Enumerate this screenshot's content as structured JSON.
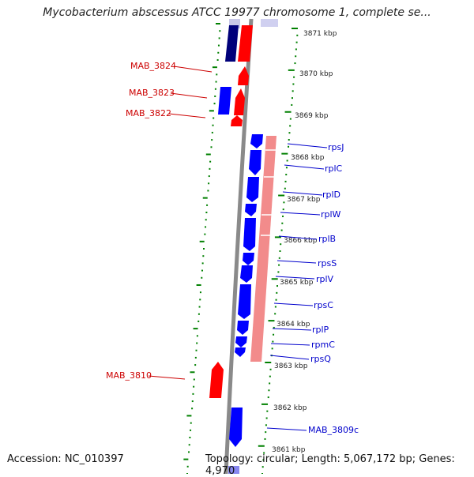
{
  "header": {
    "title": "Mycobacterium abscessus ATCC 19977 chromosome 1, complete se..."
  },
  "footer": {
    "accession": "Accession: NC_010397",
    "summary": "Topology: circular; Length: 5,067,172 bp; Genes: 4,970"
  },
  "colors": {
    "forward_gene": "#ff0000",
    "reverse_gene": "#0000ff",
    "highlight_gene": "#00007a",
    "gc_ring": "#f08080",
    "backbone": "#888888",
    "ruler_dots": "#008000",
    "left_label": "#cc0000",
    "right_label": "#0000cc"
  },
  "ruler": {
    "ticks": [
      "3871 kbp",
      "3870 kbp",
      "3869 kbp",
      "3868 kbp",
      "3867 kbp",
      "3866 kbp",
      "3865 kbp",
      "3864 kbp",
      "3863 kbp",
      "3862 kbp",
      "3861 kbp"
    ]
  },
  "left_labels": [
    "MAB_3824",
    "MAB_3823",
    "MAB_3822",
    "MAB_3810"
  ],
  "right_labels": [
    "rpsJ",
    "rplC",
    "rplD",
    "rplW",
    "rplB",
    "rpsS",
    "rplV",
    "rpsC",
    "rplP",
    "rpmC",
    "rpsQ",
    "MAB_3809c"
  ]
}
